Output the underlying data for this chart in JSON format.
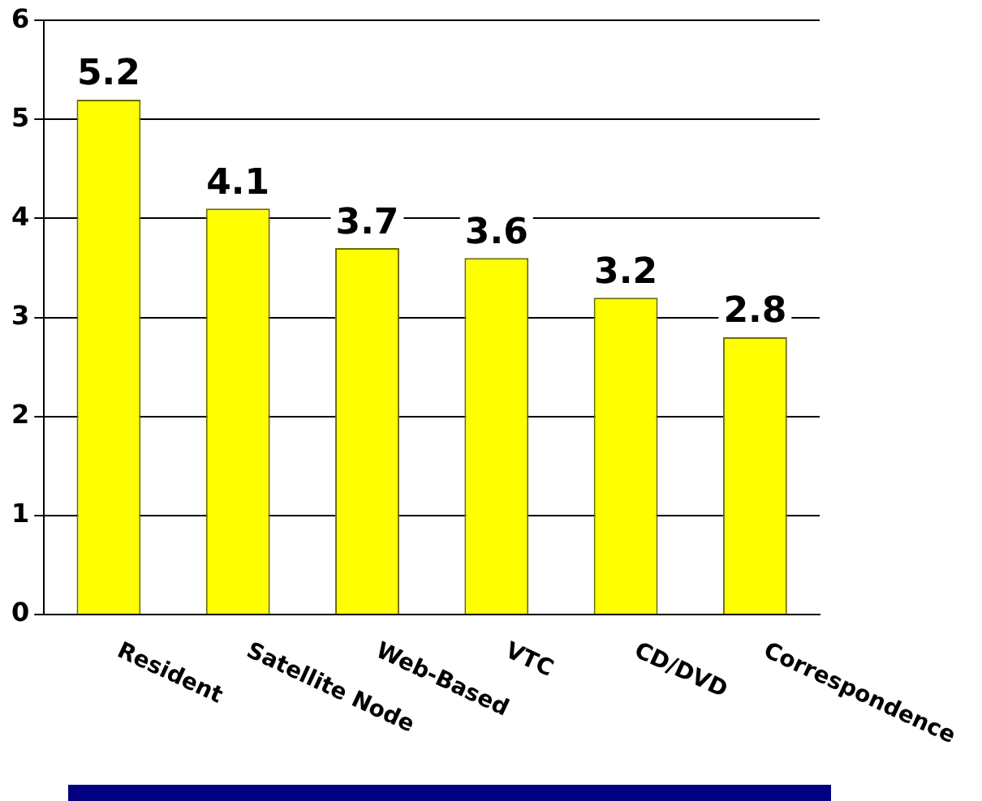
{
  "chart_data": {
    "type": "bar",
    "categories": [
      "Resident",
      "Satellite Node",
      "Web-Based",
      "VTC",
      "CD/DVD",
      "Correspondence"
    ],
    "values": [
      5.2,
      4.1,
      3.7,
      3.6,
      3.2,
      2.8
    ],
    "color": "#ffff00",
    "ylim": [
      0,
      6
    ],
    "yticks": [
      0,
      1,
      2,
      3,
      4,
      5,
      6
    ],
    "grid": "y",
    "legend": false,
    "data_labels": true
  }
}
